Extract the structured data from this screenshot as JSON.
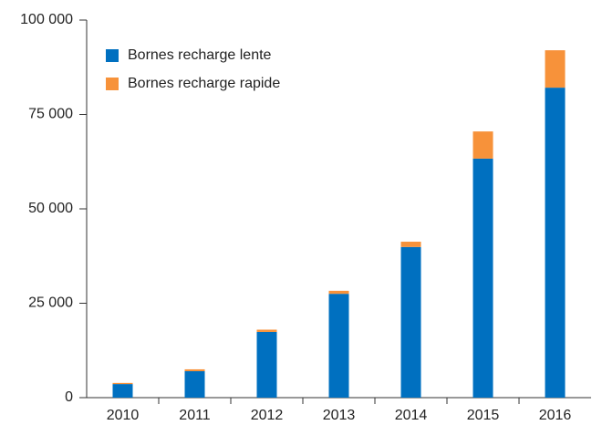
{
  "chart_data": {
    "type": "bar",
    "stacked": true,
    "categories": [
      "2010",
      "2011",
      "2012",
      "2013",
      "2014",
      "2015",
      "2016"
    ],
    "series": [
      {
        "name": "Bornes recharge lente",
        "color": "#0070c0",
        "values": [
          3600,
          7000,
          17400,
          27500,
          39900,
          63300,
          82100
        ]
      },
      {
        "name": "Bornes recharge rapide",
        "color": "#f7923a",
        "values": [
          300,
          500,
          600,
          800,
          1400,
          7200,
          9900
        ]
      }
    ],
    "ylim": [
      0,
      100000
    ],
    "yticks": [
      0,
      {
        "value": 25000,
        "label": "25 000"
      },
      {
        "value": 50000,
        "label": "50 000"
      },
      {
        "value": 75000,
        "label": "75 000"
      },
      {
        "value": 100000,
        "label": "100 000"
      }
    ],
    "legend": "upper left"
  }
}
